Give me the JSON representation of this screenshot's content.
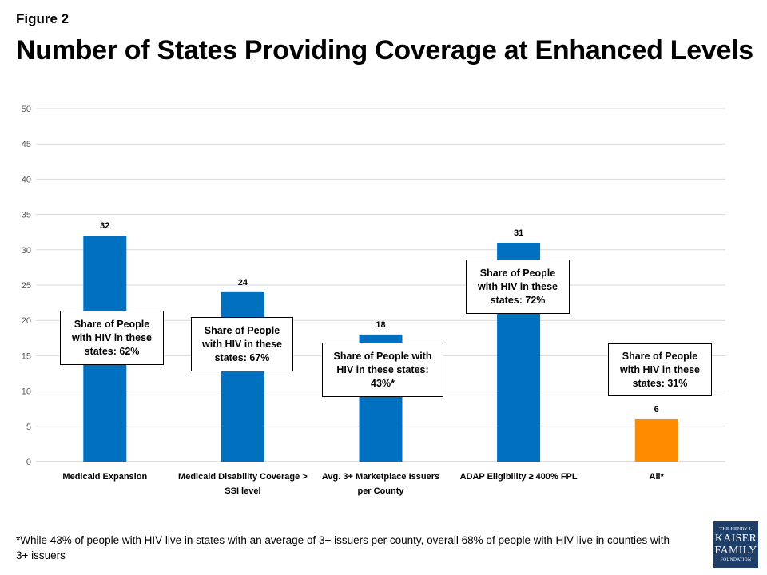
{
  "figure_label": "Figure 2",
  "title": "Number of States Providing Coverage at Enhanced Levels",
  "chart_data": {
    "type": "bar",
    "categories": [
      [
        "Medicaid Expansion"
      ],
      [
        "Medicaid Disability Coverage >",
        "SSI level"
      ],
      [
        "Avg. 3+ Marketplace Issuers",
        "per County"
      ],
      [
        "ADAP Eligibility  ≥ 400% FPL"
      ],
      [
        "All*"
      ]
    ],
    "values": [
      32,
      24,
      18,
      31,
      6
    ],
    "data_labels": [
      "32",
      "24",
      "18",
      "31",
      "6"
    ],
    "colors": [
      "#0070c0",
      "#0070c0",
      "#0070c0",
      "#0070c0",
      "#ff8c00"
    ],
    "ylim": [
      0,
      50
    ],
    "yticks": [
      0,
      5,
      10,
      15,
      20,
      25,
      30,
      35,
      40,
      45,
      50
    ],
    "grid": true,
    "annotations": [
      [
        "Share of People",
        "with HIV in these",
        "states: 62%"
      ],
      [
        "Share of People",
        "with HIV in these",
        "states: 67%"
      ],
      [
        "Share of People with",
        "HIV in these states:",
        "43%*"
      ],
      [
        "Share of People",
        "with HIV in these",
        "states: 72%"
      ],
      [
        "Share of People",
        "with HIV in these",
        "states: 31%"
      ]
    ]
  },
  "footnote": "*While 43% of people with HIV live in states with an average of 3+ issuers per county, overall 68% of people with HIV live in counties with 3+ issuers",
  "logo": {
    "line1": "THE HENRY J.",
    "line2": "KAISER",
    "line3": "FAMILY",
    "line4": "FOUNDATION",
    "color": "#1f3f6b"
  }
}
